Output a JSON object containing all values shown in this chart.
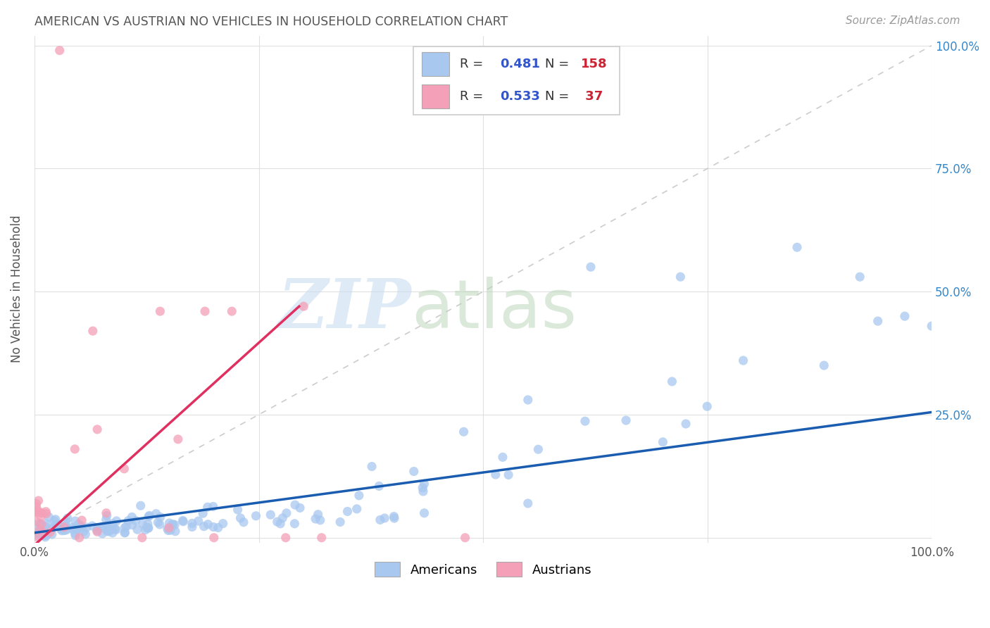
{
  "title": "AMERICAN VS AUSTRIAN NO VEHICLES IN HOUSEHOLD CORRELATION CHART",
  "source": "Source: ZipAtlas.com",
  "ylabel": "No Vehicles in Household",
  "xlim": [
    0,
    1.0
  ],
  "ylim": [
    0,
    1.0
  ],
  "american_color": "#A8C8F0",
  "austrian_color": "#F4A0B8",
  "american_line_color": "#1A5CB0",
  "austrian_line_color": "#E03060",
  "r_american": 0.481,
  "n_american": 158,
  "r_austrian": 0.533,
  "n_austrian": 37,
  "diagonal_color": "#CCCCCC",
  "legend_r_color": "#3355CC",
  "legend_n_color": "#CC2233",
  "grid_color": "#E0E0E0",
  "tick_color": "#3388CC"
}
